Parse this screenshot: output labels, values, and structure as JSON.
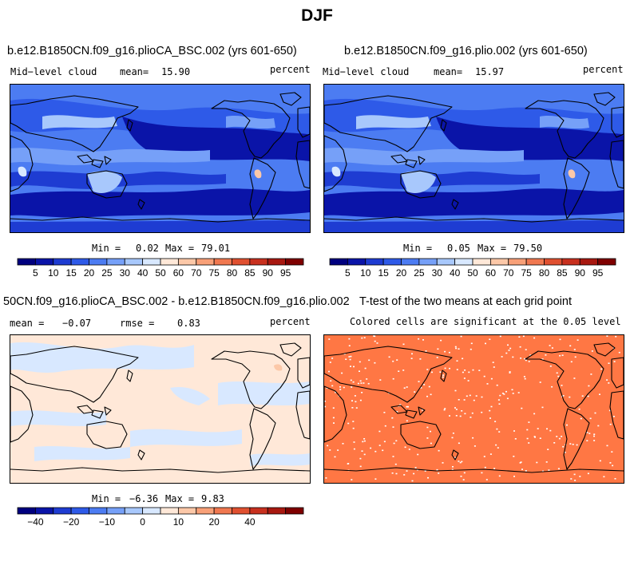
{
  "title": "DJF",
  "panels": [
    {
      "id": "test",
      "title": "b.e12.B1850CN.f09_g16.plioCA_BSC.002 (yrs 601-650)",
      "variable": "Mid−level cloud",
      "mean_label": "mean=",
      "mean_value": "15.90",
      "units": "percent",
      "min_label": "Min =",
      "min_value": "0.02",
      "max_label": "Max =",
      "max_value": "79.01"
    },
    {
      "id": "control",
      "title": "b.e12.B1850CN.f09_g16.plio.002 (yrs 601-650)",
      "variable": "Mid−level cloud",
      "mean_label": "mean=",
      "mean_value": "15.97",
      "units": "percent",
      "min_label": "Min =",
      "min_value": "0.05",
      "max_label": "Max =",
      "max_value": "79.50"
    },
    {
      "id": "difference",
      "title": "50CN.f09_g16.plioCA_BSC.002 - b.e12.B1850CN.f09_g16.plio.002",
      "mean_label": "mean =",
      "mean_value": "−0.07",
      "rmse_label": "rmse =",
      "rmse_value": "0.83",
      "units": "percent",
      "min_label": "Min =",
      "min_value": "−6.36",
      "max_label": "Max =",
      "max_value": "9.83"
    },
    {
      "id": "ttest",
      "title": "T-test of the two means at each grid point",
      "subtitle": "Colored cells are significant at the 0.05 level",
      "fill_color": "#ff7744"
    }
  ],
  "colorbars": {
    "absolute": {
      "colors": [
        "#00007f",
        "#0a14a8",
        "#1e3cd2",
        "#2e5ae8",
        "#4c7cf2",
        "#76a0f8",
        "#a8c8fc",
        "#d8e8ff",
        "#ffe8d8",
        "#fcc8a8",
        "#f8a078",
        "#f07850",
        "#e05030",
        "#c8301e",
        "#a81810",
        "#7f0000"
      ],
      "labels": [
        "5",
        "10",
        "15",
        "20",
        "25",
        "30",
        "40",
        "50",
        "60",
        "70",
        "75",
        "80",
        "85",
        "90",
        "95"
      ]
    },
    "difference": {
      "colors": [
        "#00007f",
        "#0a14a8",
        "#1e3cd2",
        "#2e5ae8",
        "#4c7cf2",
        "#76a0f8",
        "#a8c8fc",
        "#d8e8ff",
        "#ffe8d8",
        "#fcc8a8",
        "#f8a078",
        "#f07850",
        "#e05030",
        "#c8301e",
        "#a81810",
        "#7f0000"
      ],
      "labels": [
        "−40",
        "−20",
        "−10",
        "0",
        "10",
        "20",
        "40"
      ],
      "label_boundaries": [
        1,
        3,
        5,
        7,
        9,
        11,
        13
      ]
    }
  },
  "chart_data": [
    {
      "type": "heatmap",
      "panel": "test",
      "variable": "Mid−level cloud",
      "units": "percent",
      "mean": 15.9,
      "min": 0.02,
      "max": 79.01
    },
    {
      "type": "heatmap",
      "panel": "control",
      "variable": "Mid−level cloud",
      "units": "percent",
      "mean": 15.97,
      "min": 0.05,
      "max": 79.5
    },
    {
      "type": "heatmap",
      "panel": "difference",
      "units": "percent",
      "mean": -0.07,
      "rmse": 0.83,
      "min": -6.36,
      "max": 9.83
    },
    {
      "type": "heatmap",
      "panel": "ttest",
      "significance_level": 0.05
    }
  ]
}
